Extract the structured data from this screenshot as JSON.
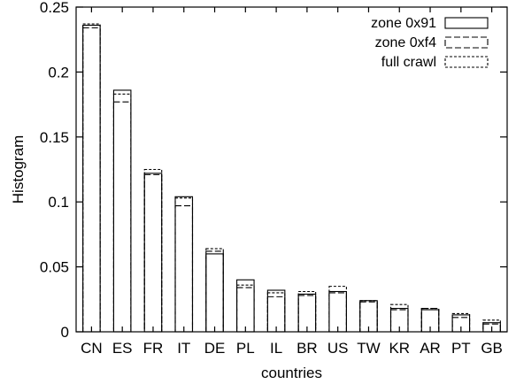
{
  "chart_data": {
    "type": "bar",
    "xlabel": "countries",
    "ylabel": "Histogram",
    "ylim": [
      0,
      0.25
    ],
    "yticks": [
      "0",
      "0.05",
      "0.1",
      "0.15",
      "0.2",
      "0.25"
    ],
    "yticks_values": [
      0,
      0.05,
      0.1,
      0.15,
      0.2,
      0.25
    ],
    "grid": false,
    "legend_position": "top-right",
    "categories": [
      "CN",
      "ES",
      "FR",
      "IT",
      "DE",
      "PL",
      "IL",
      "BR",
      "US",
      "TW",
      "KR",
      "AR",
      "PT",
      "GB"
    ],
    "series": [
      {
        "name": "zone 0x91",
        "style": "solid",
        "values": [
          0.236,
          0.186,
          0.122,
          0.104,
          0.06,
          0.04,
          0.032,
          0.029,
          0.031,
          0.024,
          0.018,
          0.017,
          0.013,
          0.007
        ]
      },
      {
        "name": "zone 0xf4",
        "style": "dashed",
        "values": [
          0.234,
          0.177,
          0.121,
          0.097,
          0.062,
          0.034,
          0.027,
          0.028,
          0.03,
          0.023,
          0.017,
          0.018,
          0.011,
          0.006
        ]
      },
      {
        "name": "full crawl",
        "style": "dotted",
        "values": [
          0.237,
          0.183,
          0.125,
          0.103,
          0.064,
          0.036,
          0.03,
          0.031,
          0.035,
          0.024,
          0.021,
          0.018,
          0.014,
          0.009
        ]
      }
    ]
  }
}
